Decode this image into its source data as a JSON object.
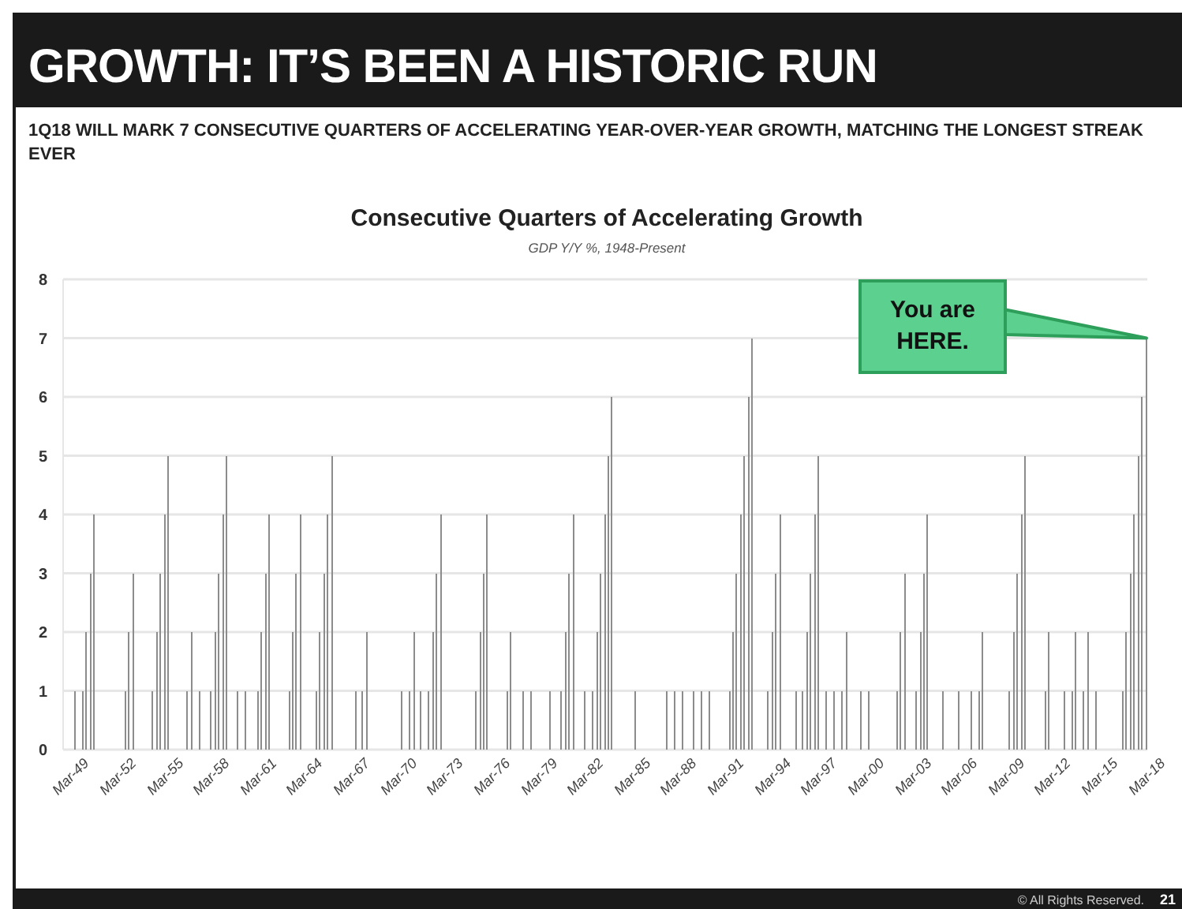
{
  "chart_data": {
    "type": "bar",
    "title": "GROWTH: IT’S BEEN A HISTORIC RUN",
    "subtitle": "1Q18 WILL MARK 7 CONSECUTIVE QUARTERS OF ACCELERATING YEAR-OVER-YEAR GROWTH, MATCHING THE LONGEST STREAK EVER",
    "categories": [
      "Mar-49",
      null,
      null,
      null,
      null,
      null,
      null,
      null,
      null,
      null,
      null,
      null,
      "Mar-52",
      null,
      null,
      null,
      null,
      null,
      null,
      null,
      null,
      null,
      null,
      null,
      "Mar-55",
      null,
      null,
      null,
      null,
      null,
      null,
      null,
      null,
      null,
      null,
      null,
      "Mar-58",
      null,
      null,
      null,
      null,
      null,
      null,
      null,
      null,
      null,
      null,
      null,
      "Mar-61",
      null,
      null,
      null,
      null,
      null,
      null,
      null,
      null,
      null,
      null,
      null,
      "Mar-64",
      null,
      null,
      null,
      null,
      null,
      null,
      null,
      null,
      null,
      null,
      null,
      "Mar-67",
      null,
      null,
      null,
      null,
      null,
      null,
      null,
      null,
      null,
      null,
      null,
      "Mar-70",
      null,
      null,
      null,
      null,
      null,
      null,
      null,
      null,
      null,
      null,
      null,
      "Mar-73",
      null,
      null,
      null,
      null,
      null,
      null,
      null,
      null,
      null,
      null,
      null,
      "Mar-76",
      null,
      null,
      null,
      null,
      null,
      null,
      null,
      null,
      null,
      null,
      null,
      "Mar-79",
      null,
      null,
      null,
      null,
      null,
      null,
      null,
      null,
      null,
      null,
      null,
      "Mar-82",
      null,
      null,
      null,
      null,
      null,
      null,
      null,
      null,
      null,
      null,
      null,
      "Mar-85",
      null,
      null,
      null,
      null,
      null,
      null,
      null,
      null,
      null,
      null,
      null,
      "Mar-88",
      null,
      null,
      null,
      null,
      null,
      null,
      null,
      null,
      null,
      null,
      null,
      "Mar-91",
      null,
      null,
      null,
      null,
      null,
      null,
      null,
      null,
      null,
      null,
      null,
      "Mar-94",
      null,
      null,
      null,
      null,
      null,
      null,
      null,
      null,
      null,
      null,
      null,
      "Mar-97",
      null,
      null,
      null,
      null,
      null,
      null,
      null,
      null,
      null,
      null,
      null,
      "Mar-00",
      null,
      null,
      null,
      null,
      null,
      null,
      null,
      null,
      null,
      null,
      null,
      "Mar-03",
      null,
      null,
      null,
      null,
      null,
      null,
      null,
      null,
      null,
      null,
      null,
      "Mar-06",
      null,
      null,
      null,
      null,
      null,
      null,
      null,
      null,
      null,
      null,
      null,
      "Mar-09",
      null,
      null,
      null,
      null,
      null,
      null,
      null,
      null,
      null,
      null,
      null,
      "Mar-12",
      null,
      null,
      null,
      null,
      null,
      null,
      null,
      null,
      null,
      null,
      null,
      "Mar-15",
      null,
      null,
      null,
      null,
      null,
      null,
      null,
      null,
      null,
      null,
      null,
      "Mar-18"
    ],
    "values": [
      0,
      1,
      0,
      1,
      2,
      3,
      4,
      0,
      0,
      0,
      0,
      0,
      0,
      0,
      1,
      2,
      3,
      0,
      0,
      0,
      0,
      1,
      2,
      3,
      4,
      5,
      0,
      0,
      0,
      0,
      1,
      2,
      0,
      1,
      0,
      0,
      1,
      2,
      3,
      4,
      5,
      0,
      0,
      1,
      0,
      1,
      0,
      0,
      1,
      2,
      3,
      4,
      0,
      0,
      0,
      0,
      1,
      2,
      3,
      4,
      0,
      0,
      0,
      1,
      2,
      3,
      4,
      5,
      0,
      0,
      0,
      0,
      0,
      1,
      0,
      1,
      2,
      0,
      0,
      0,
      0,
      0,
      0,
      0,
      0,
      1,
      0,
      1,
      2,
      0,
      1,
      0,
      1,
      2,
      3,
      4,
      0,
      0,
      0,
      0,
      0,
      0,
      0,
      0,
      1,
      2,
      3,
      4,
      0,
      0,
      0,
      0,
      1,
      2,
      0,
      0,
      1,
      0,
      1,
      0,
      0,
      0,
      0,
      1,
      0,
      0,
      1,
      2,
      3,
      4,
      0,
      0,
      1,
      0,
      1,
      2,
      3,
      4,
      5,
      6,
      0,
      0,
      0,
      0,
      0,
      1,
      0,
      0,
      0,
      0,
      0,
      0,
      0,
      1,
      0,
      1,
      0,
      1,
      0,
      0,
      1,
      0,
      1,
      0,
      1,
      0,
      0,
      0,
      0,
      1,
      2,
      3,
      4,
      5,
      6,
      7,
      0,
      0,
      0,
      1,
      2,
      3,
      4,
      0,
      0,
      0,
      1,
      0,
      1,
      2,
      3,
      4,
      5,
      0,
      1,
      0,
      1,
      0,
      1,
      2,
      0,
      0,
      0,
      1,
      0,
      1,
      0,
      0,
      0,
      0,
      0,
      0,
      1,
      2,
      3,
      0,
      0,
      1,
      2,
      3,
      4,
      0,
      0,
      0,
      1,
      0,
      0,
      0,
      1,
      0,
      0,
      1,
      0,
      1,
      2,
      0,
      0,
      0,
      0,
      0,
      0,
      1,
      2,
      3,
      4,
      5,
      0,
      0,
      0,
      0,
      1,
      2,
      0,
      0,
      0,
      1,
      0,
      1,
      2,
      0,
      1,
      2,
      0,
      1,
      0,
      0,
      0,
      0,
      0,
      0,
      1,
      2,
      3,
      4,
      5,
      6,
      7
    ],
    "color": "#8c8c8c",
    "ylim": [
      0,
      8
    ],
    "yticks": [
      0,
      1,
      2,
      3,
      4,
      5,
      6,
      7,
      8
    ],
    "grid": "y",
    "annotations": [
      "Consecutive Quarters of Accelerating Growth",
      "GDP Y/Y %, 1948-Present",
      {
        "text": "You are HERE.",
        "x": "Mar-18",
        "y": 7
      },
      "© All Rights Reserved.",
      "21"
    ]
  }
}
